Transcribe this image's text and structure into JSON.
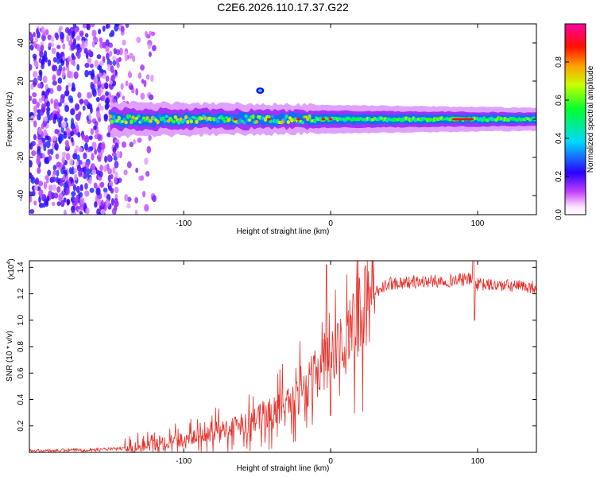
{
  "figure_title": "C2E6.2026.110.17.37.G22",
  "chart_data": [
    {
      "type": "heatmap",
      "name": "spectrogram",
      "xlabel": "Height of straight line (km)",
      "ylabel": "Frequency (Hz)",
      "xlim": [
        -205,
        140
      ],
      "ylim": [
        -50,
        50
      ],
      "xticks": [
        -100,
        0,
        100
      ],
      "yticks": [
        -40,
        -20,
        0,
        20,
        40
      ],
      "xtick_labels": [
        "-100",
        "0",
        "100"
      ],
      "ytick_labels": [
        "-40",
        "-20",
        "0",
        "20",
        "40"
      ],
      "colorbar": {
        "label": "Normalized spectral amplitude",
        "range": [
          0,
          1
        ],
        "ticks": [
          0.0,
          0.2,
          0.4,
          0.6,
          0.8
        ],
        "tick_labels": [
          "0.0",
          "0.2",
          "0.4",
          "0.6",
          "0.8"
        ],
        "colormap": [
          "#ffffff",
          "#8000ff",
          "#0000ff",
          "#00ffff",
          "#00ff00",
          "#ffff00",
          "#ff8000",
          "#ff0000",
          "#ff00a0"
        ]
      },
      "features": {
        "noise_region_x": [
          -205,
          -120
        ],
        "band_start_x": -150,
        "band_center_freq": 0,
        "burst": {
          "x": -48,
          "freq": 15
        }
      }
    },
    {
      "type": "line",
      "name": "snr",
      "xlabel": "Height of straight line (km)",
      "ylabel": "SNR (10 * v/v)",
      "scale_label": "(x10",
      "scale_exp": "4",
      "scale_close": ")",
      "xlim": [
        -205,
        140
      ],
      "ylim": [
        0,
        1.45
      ],
      "xticks": [
        -100,
        0,
        100
      ],
      "yticks": [
        0.2,
        0.4,
        0.6,
        0.8,
        1.0,
        1.2,
        1.4
      ],
      "xtick_labels": [
        "-100",
        "0",
        "100"
      ],
      "ytick_labels": [
        "0.2",
        "0.4",
        "0.6",
        "0.8",
        "1.0",
        "1.2",
        "1.4"
      ],
      "color": "#e8302a",
      "envelope": {
        "x": [
          -205,
          -160,
          -140,
          -120,
          -100,
          -80,
          -60,
          -40,
          -20,
          -10,
          0,
          10,
          20,
          30,
          40,
          60,
          80,
          95,
          100,
          120,
          140
        ],
        "y": [
          0.01,
          0.02,
          0.03,
          0.06,
          0.1,
          0.15,
          0.22,
          0.3,
          0.45,
          0.6,
          0.72,
          0.85,
          1.05,
          1.2,
          1.28,
          1.29,
          1.3,
          1.31,
          1.27,
          1.26,
          1.25
        ]
      },
      "spikes": [
        {
          "x": -3,
          "y": 1.42
        },
        {
          "x": 0,
          "y": 0.28
        },
        {
          "x": 97,
          "y": 1.46
        },
        {
          "x": 98,
          "y": 1.0
        }
      ]
    }
  ]
}
